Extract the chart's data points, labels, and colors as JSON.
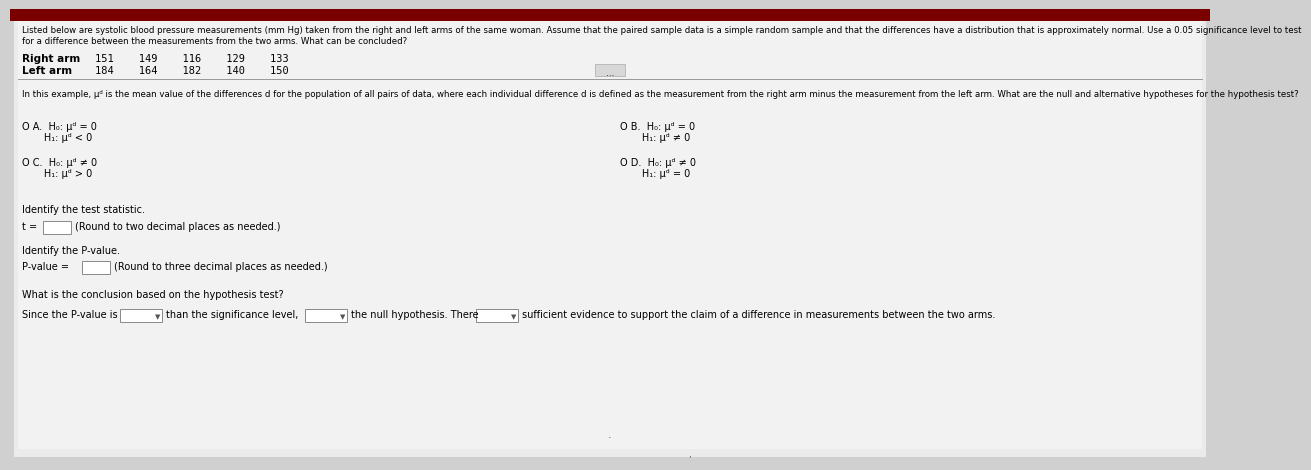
{
  "bg_color": "#d0d0d0",
  "top_bar_color": "#7a0000",
  "content_bg": "#e8e8e8",
  "text_color": "#000000",
  "title_text_line1": "Listed below are systolic blood pressure measurements (mm Hg) taken from the right and left arms of the same woman. Assume that the paired sample data is a simple random sample and that the differences have a distribution that is approximately normal. Use a 0.05 significance level to test",
  "title_text_line2": "for a difference between the measurements from the two arms. What can be concluded?",
  "right_arm_label": "Right arm",
  "left_arm_label": "Left arm",
  "right_arm_values": "151    149    116    129    133",
  "left_arm_values": "184    164    182    140    150",
  "para_text": "In this example, μᵈ is the mean value of the differences d for the population of all pairs of data, where each individual difference d is defined as the measurement from the right arm minus the measurement from the left arm. What are the null and alternative hypotheses for the hypothesis test?",
  "optA_line1": "O A.  H₀: μᵈ = 0",
  "optA_line2": "       H₁: μᵈ < 0",
  "optB_line1": "O B.  H₀: μᵈ = 0",
  "optB_line2": "       H₁: μᵈ ≠ 0",
  "optC_line1": "O C.  H₀: μᵈ ≠ 0",
  "optC_line2": "       H₁: μᵈ > 0",
  "optD_line1": "O D.  H₀: μᵈ ≠ 0",
  "optD_line2": "       H₁: μᵈ = 0",
  "identify_stat": "Identify the test statistic.",
  "t_label": "t =",
  "t_hint": "(Round to two decimal places as needed.)",
  "identify_p": "Identify the P-value.",
  "p_label": "P-value =",
  "p_hint": "(Round to three decimal places as needed.)",
  "conclusion_label": "What is the conclusion based on the hypothesis test?",
  "since_text1": "Since the P-value is",
  "since_text2": "than the significance level,",
  "since_text3": "the null hypothesis. There",
  "since_text4": "sufficient evidence to support the claim of a difference in measurements between the two arms."
}
